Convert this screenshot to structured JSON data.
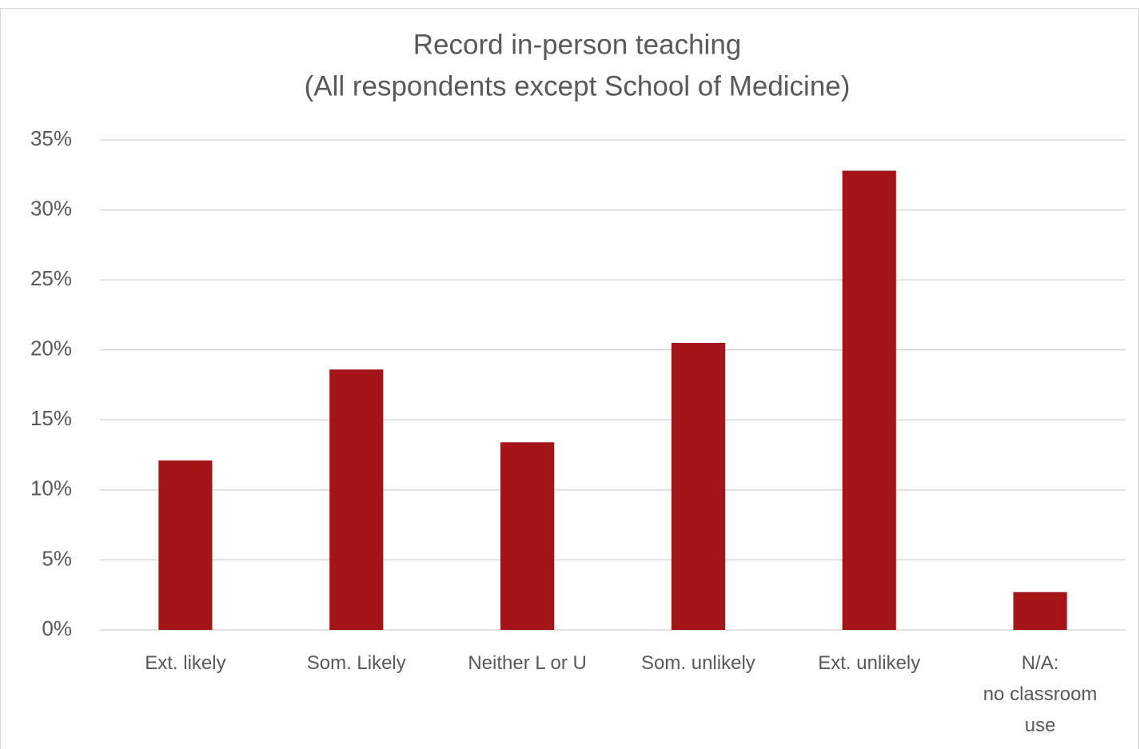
{
  "chart_data": {
    "type": "bar",
    "title": "Record in-person teaching",
    "subtitle": "(All respondents except School of Medicine)",
    "categories": [
      "Ext. likely",
      "Som. Likely",
      "Neither L or U",
      "Som. unlikely",
      "Ext. unlikely",
      "N/A:\nno classroom\nuse"
    ],
    "values": [
      12.1,
      18.6,
      13.4,
      20.5,
      32.8,
      2.7
    ],
    "color": "#a31419",
    "ylim": [
      0,
      35
    ],
    "yticks": [
      {
        "value": 0,
        "label": "0%"
      },
      {
        "value": 5,
        "label": "5%"
      },
      {
        "value": 10,
        "label": "10%"
      },
      {
        "value": 15,
        "label": "15%"
      },
      {
        "value": 20,
        "label": "20%"
      },
      {
        "value": 25,
        "label": "25%"
      },
      {
        "value": 30,
        "label": "30%"
      },
      {
        "value": 35,
        "label": "35%"
      }
    ],
    "grid": true
  }
}
